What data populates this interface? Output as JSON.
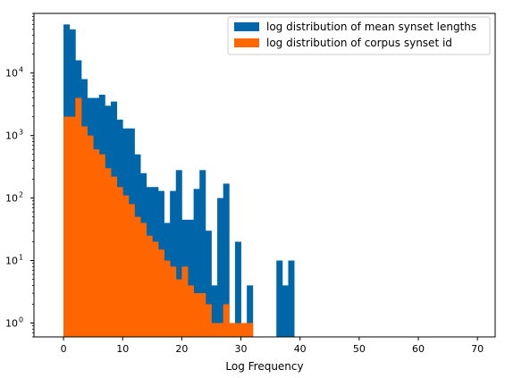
{
  "chart_data": {
    "type": "bar",
    "title": "",
    "xlabel": "Log Frequency",
    "ylabel": "",
    "xlim": [
      -5,
      73
    ],
    "ylim": [
      0.6,
      90000
    ],
    "yscale": "log",
    "grid": false,
    "legend_position": "top-right",
    "bin_width": 1,
    "x_ticks": [
      0,
      10,
      20,
      30,
      40,
      50,
      60,
      70
    ],
    "x_tick_labels": [
      "0",
      "10",
      "20",
      "30",
      "40",
      "50",
      "60",
      "70"
    ],
    "y_ticks": [
      1,
      10,
      100,
      1000,
      10000
    ],
    "y_tick_labels": [
      "10",
      "10",
      "10",
      "10",
      "10"
    ],
    "y_tick_exponents": [
      "0",
      "1",
      "2",
      "3",
      "4"
    ],
    "series": [
      {
        "name": "log distribution of mean synset lengths",
        "color": "#0066aa",
        "bins": [
          {
            "x": 0,
            "value": 60000
          },
          {
            "x": 1,
            "value": 50000
          },
          {
            "x": 2,
            "value": 16000
          },
          {
            "x": 3,
            "value": 8000
          },
          {
            "x": 4,
            "value": 4000
          },
          {
            "x": 5,
            "value": 4000
          },
          {
            "x": 6,
            "value": 4500
          },
          {
            "x": 7,
            "value": 3000
          },
          {
            "x": 8,
            "value": 3500
          },
          {
            "x": 9,
            "value": 1800
          },
          {
            "x": 10,
            "value": 1300
          },
          {
            "x": 11,
            "value": 1300
          },
          {
            "x": 12,
            "value": 500
          },
          {
            "x": 13,
            "value": 250
          },
          {
            "x": 14,
            "value": 150
          },
          {
            "x": 15,
            "value": 150
          },
          {
            "x": 16,
            "value": 130
          },
          {
            "x": 17,
            "value": 40
          },
          {
            "x": 18,
            "value": 130
          },
          {
            "x": 19,
            "value": 280
          },
          {
            "x": 20,
            "value": 45
          },
          {
            "x": 21,
            "value": 45
          },
          {
            "x": 22,
            "value": 140
          },
          {
            "x": 23,
            "value": 280
          },
          {
            "x": 24,
            "value": 30
          },
          {
            "x": 25,
            "value": 4
          },
          {
            "x": 26,
            "value": 100
          },
          {
            "x": 27,
            "value": 170
          },
          {
            "x": 28,
            "value": 1
          },
          {
            "x": 29,
            "value": 20
          },
          {
            "x": 30,
            "value": 0
          },
          {
            "x": 31,
            "value": 4
          },
          {
            "x": 32,
            "value": 0
          },
          {
            "x": 33,
            "value": 0
          },
          {
            "x": 34,
            "value": 0
          },
          {
            "x": 35,
            "value": 0
          },
          {
            "x": 36,
            "value": 10
          },
          {
            "x": 37,
            "value": 4
          },
          {
            "x": 38,
            "value": 10
          }
        ]
      },
      {
        "name": "log distribution of corpus synset id",
        "color": "#ff6600",
        "bins": [
          {
            "x": 0,
            "value": 2000
          },
          {
            "x": 1,
            "value": 2000
          },
          {
            "x": 2,
            "value": 4000
          },
          {
            "x": 3,
            "value": 1400
          },
          {
            "x": 4,
            "value": 1000
          },
          {
            "x": 5,
            "value": 600
          },
          {
            "x": 6,
            "value": 500
          },
          {
            "x": 7,
            "value": 300
          },
          {
            "x": 8,
            "value": 220
          },
          {
            "x": 9,
            "value": 150
          },
          {
            "x": 10,
            "value": 110
          },
          {
            "x": 11,
            "value": 80
          },
          {
            "x": 12,
            "value": 50
          },
          {
            "x": 13,
            "value": 40
          },
          {
            "x": 14,
            "value": 25
          },
          {
            "x": 15,
            "value": 20
          },
          {
            "x": 16,
            "value": 15
          },
          {
            "x": 17,
            "value": 10
          },
          {
            "x": 18,
            "value": 8
          },
          {
            "x": 19,
            "value": 5
          },
          {
            "x": 20,
            "value": 8
          },
          {
            "x": 21,
            "value": 4
          },
          {
            "x": 22,
            "value": 3
          },
          {
            "x": 23,
            "value": 3
          },
          {
            "x": 24,
            "value": 2
          },
          {
            "x": 25,
            "value": 1
          },
          {
            "x": 26,
            "value": 1
          },
          {
            "x": 27,
            "value": 2
          },
          {
            "x": 28,
            "value": 1
          },
          {
            "x": 29,
            "value": 1
          },
          {
            "x": 30,
            "value": 1
          },
          {
            "x": 31,
            "value": 1
          }
        ]
      }
    ]
  }
}
